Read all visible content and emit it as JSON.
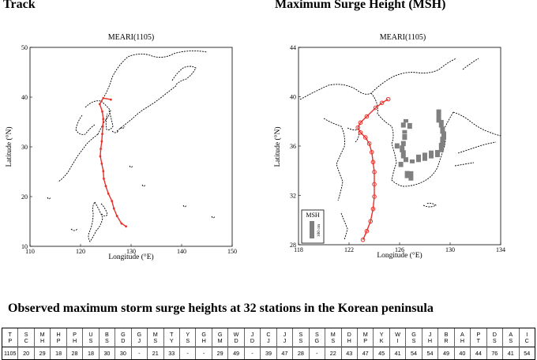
{
  "headings": {
    "track": "Track",
    "msh": "Maximum Surge Height (MSH)",
    "table": "Observed maximum storm surge heights at 32 stations in the Korean peninsula"
  },
  "track_map": {
    "title": "MEARI(1105)",
    "xlabel": "Longitude (°E)",
    "ylabel": "Latitude (°N)",
    "xticks": [
      "110",
      "120",
      "130",
      "140",
      "150"
    ],
    "yticks": [
      "10",
      "20",
      "30",
      "40",
      "50"
    ],
    "xlim": [
      110,
      150
    ],
    "ylim": [
      10,
      50
    ],
    "track_color": "#e8302a",
    "track": [
      [
        129.0,
        14.0
      ],
      [
        128.1,
        14.6
      ],
      [
        127.2,
        16.1
      ],
      [
        126.6,
        17.6
      ],
      [
        126.2,
        19.1
      ],
      [
        125.5,
        20.6
      ],
      [
        125.0,
        22.1
      ],
      [
        124.6,
        23.6
      ],
      [
        124.5,
        25.1
      ],
      [
        124.2,
        26.6
      ],
      [
        123.9,
        28.1
      ],
      [
        124.0,
        29.6
      ],
      [
        124.2,
        31.1
      ],
      [
        124.3,
        32.6
      ],
      [
        124.4,
        34.1
      ],
      [
        124.5,
        35.6
      ],
      [
        124.3,
        37.1
      ],
      [
        123.8,
        38.6
      ],
      [
        124.5,
        39.8
      ],
      [
        126.0,
        39.5
      ]
    ]
  },
  "msh_map": {
    "title": "MEARI(1105)",
    "xlabel": "Longitude (°E)",
    "ylabel": "Latitude (°N)",
    "xticks": [
      "118",
      "122",
      "126",
      "130",
      "134"
    ],
    "yticks": [
      "28",
      "32",
      "36",
      "40",
      "44"
    ],
    "xlim": [
      118,
      134
    ],
    "ylim": [
      28,
      44
    ],
    "track_color": "#e8302a",
    "bar_color": "#808080",
    "legend_title": "MSH",
    "legend_scale": "100 cm",
    "track": [
      [
        123.1,
        28.4
      ],
      [
        123.4,
        29.1
      ],
      [
        123.7,
        29.9
      ],
      [
        123.9,
        30.9
      ],
      [
        124.0,
        31.9
      ],
      [
        124.0,
        32.9
      ],
      [
        124.0,
        33.9
      ],
      [
        123.9,
        34.7
      ],
      [
        123.8,
        35.5
      ],
      [
        123.6,
        36.2
      ],
      [
        123.3,
        36.7
      ],
      [
        122.9,
        37.1
      ],
      [
        122.7,
        37.5
      ],
      [
        122.9,
        37.9
      ],
      [
        123.4,
        38.4
      ],
      [
        124.1,
        39.1
      ],
      [
        124.6,
        39.5
      ],
      [
        125.1,
        39.8
      ]
    ],
    "bars": [
      [
        126.5,
        37.9,
        20
      ],
      [
        126.3,
        37.5,
        29
      ],
      [
        126.4,
        37.0,
        21
      ],
      [
        126.4,
        36.5,
        33
      ],
      [
        126.3,
        36.0,
        29
      ],
      [
        126.2,
        35.5,
        39
      ],
      [
        126.3,
        35.0,
        47
      ],
      [
        126.5,
        34.7,
        28
      ],
      [
        127.0,
        34.6,
        22
      ],
      [
        127.5,
        34.7,
        43
      ],
      [
        128.0,
        34.8,
        47
      ],
      [
        128.5,
        35.0,
        45
      ],
      [
        129.0,
        35.1,
        41
      ],
      [
        129.3,
        35.5,
        54
      ],
      [
        129.4,
        36.0,
        54
      ],
      [
        129.5,
        36.5,
        49
      ],
      [
        129.4,
        37.0,
        40
      ],
      [
        129.3,
        37.5,
        44
      ],
      [
        129.1,
        37.9,
        76
      ],
      [
        126.6,
        33.4,
        41
      ],
      [
        126.9,
        33.2,
        54
      ],
      [
        125.8,
        35.8,
        30
      ],
      [
        126.1,
        34.3,
        30
      ],
      [
        126.8,
        37.4,
        33
      ]
    ]
  },
  "table": {
    "codes": [
      "TP",
      "SC",
      "MH",
      "HP",
      "PH",
      "US",
      "BS",
      "GD",
      "GJ",
      "MS",
      "TY",
      "YS",
      "GH",
      "GM",
      "WD",
      "JD",
      "CJ",
      "JJ",
      "SS",
      "SG",
      "MS",
      "DH",
      "MP",
      "YK",
      "WI",
      "GS",
      "JH",
      "BR",
      "AH",
      "PT",
      "DS",
      "AS",
      "IC"
    ],
    "values": [
      "1105",
      "20",
      "29",
      "18",
      "28",
      "18",
      "30",
      "30",
      "-",
      "21",
      "33",
      "-",
      "-",
      "29",
      "49",
      "-",
      "39",
      "47",
      "28",
      "-",
      "22",
      "43",
      "47",
      "45",
      "41",
      "54",
      "54",
      "49",
      "40",
      "44",
      "76",
      "41",
      "54"
    ]
  }
}
